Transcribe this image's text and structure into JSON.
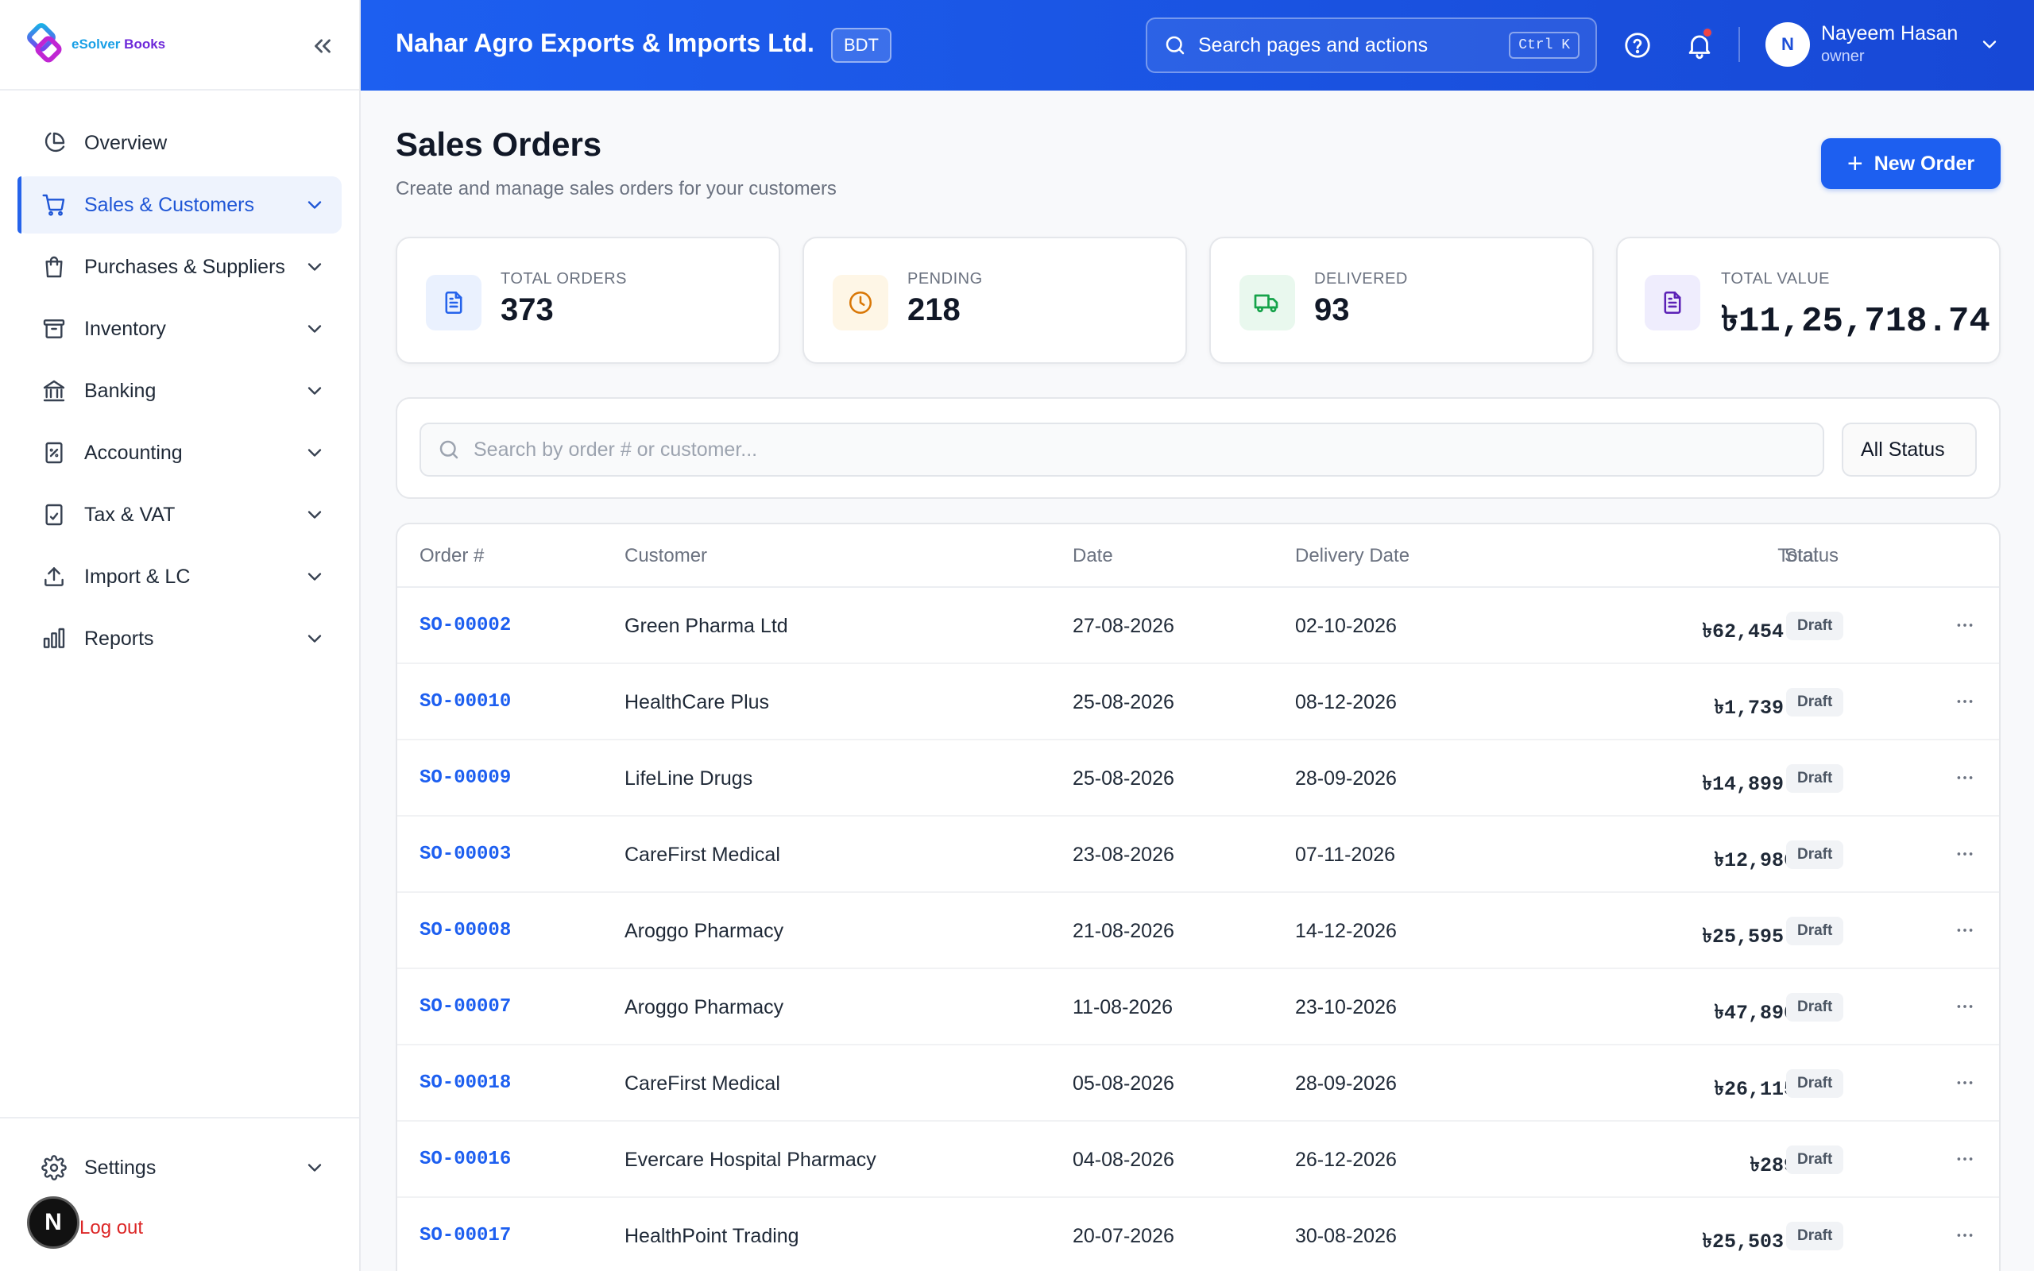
{
  "brand": {
    "name_part1": "eSolver",
    "name_part2": "Books"
  },
  "sidebar": {
    "items": [
      {
        "label": "Overview",
        "icon": "pie-chart-icon",
        "active": false,
        "has_chevron": false
      },
      {
        "label": "Sales & Customers",
        "icon": "cart-icon",
        "active": true,
        "has_chevron": true
      },
      {
        "label": "Purchases & Suppliers",
        "icon": "shopping-bag-icon",
        "active": false,
        "has_chevron": true
      },
      {
        "label": "Inventory",
        "icon": "archive-box-icon",
        "active": false,
        "has_chevron": true
      },
      {
        "label": "Banking",
        "icon": "bank-icon",
        "active": false,
        "has_chevron": true
      },
      {
        "label": "Accounting",
        "icon": "calculator-icon",
        "active": false,
        "has_chevron": true
      },
      {
        "label": "Tax & VAT",
        "icon": "receipt-icon",
        "active": false,
        "has_chevron": true
      },
      {
        "label": "Import & LC",
        "icon": "upload-icon",
        "active": false,
        "has_chevron": true
      },
      {
        "label": "Reports",
        "icon": "bar-chart-icon",
        "active": false,
        "has_chevron": true
      }
    ],
    "settings_label": "Settings",
    "logout_label": "Log out",
    "dev_avatar_letter": "N"
  },
  "header": {
    "company": "Nahar Agro Exports & Imports Ltd.",
    "currency": "BDT",
    "search_placeholder": "Search pages and actions",
    "shortcut": "Ctrl K",
    "user": {
      "initial": "N",
      "name": "Nayeem Hasan",
      "role": "owner"
    }
  },
  "page": {
    "title": "Sales Orders",
    "subtitle": "Create and manage sales orders for your customers",
    "new_button": "New Order"
  },
  "stats": [
    {
      "label": "TOTAL ORDERS",
      "value": "373",
      "icon": "document-icon",
      "color": "#2563eb",
      "bg": "#eaf1fe"
    },
    {
      "label": "PENDING",
      "value": "218",
      "icon": "clock-icon",
      "color": "#d97706",
      "bg": "#fef6e6"
    },
    {
      "label": "DELIVERED",
      "value": "93",
      "icon": "truck-icon",
      "color": "#16a34a",
      "bg": "#e9f8ee"
    },
    {
      "label": "TOTAL VALUE",
      "value": "৳11,25,718.74",
      "icon": "invoice-icon",
      "color": "#5b21b6",
      "bg": "#efedfd"
    }
  ],
  "filters": {
    "search_placeholder": "Search by order # or customer...",
    "status_value": "All Status"
  },
  "table": {
    "headers": {
      "order": "Order #",
      "customer": "Customer",
      "date": "Date",
      "delivery": "Delivery Date",
      "total": "Total",
      "status": "Status"
    },
    "rows": [
      {
        "order": "SO-00002",
        "customer": "Green Pharma Ltd",
        "date": "27-08-2026",
        "delivery": "02-10-2026",
        "total": "৳62,454.63",
        "status": "Draft"
      },
      {
        "order": "SO-00010",
        "customer": "HealthCare Plus",
        "date": "25-08-2026",
        "delivery": "08-12-2026",
        "total": "৳1,739.53",
        "status": "Draft"
      },
      {
        "order": "SO-00009",
        "customer": "LifeLine Drugs",
        "date": "25-08-2026",
        "delivery": "28-09-2026",
        "total": "৳14,899.45",
        "status": "Draft"
      },
      {
        "order": "SO-00003",
        "customer": "CareFirst Medical",
        "date": "23-08-2026",
        "delivery": "07-11-2026",
        "total": "৳12,986.1",
        "status": "Draft"
      },
      {
        "order": "SO-00008",
        "customer": "Aroggo Pharmacy",
        "date": "21-08-2026",
        "delivery": "14-12-2026",
        "total": "৳25,595.85",
        "status": "Draft"
      },
      {
        "order": "SO-00007",
        "customer": "Aroggo Pharmacy",
        "date": "11-08-2026",
        "delivery": "23-10-2026",
        "total": "৳47,890.7",
        "status": "Draft"
      },
      {
        "order": "SO-00018",
        "customer": "CareFirst Medical",
        "date": "05-08-2026",
        "delivery": "28-09-2026",
        "total": "৳26,115.7",
        "status": "Draft"
      },
      {
        "order": "SO-00016",
        "customer": "Evercare Hospital Pharmacy",
        "date": "04-08-2026",
        "delivery": "26-12-2026",
        "total": "৳289.8",
        "status": "Draft"
      },
      {
        "order": "SO-00017",
        "customer": "HealthPoint Trading",
        "date": "20-07-2026",
        "delivery": "30-08-2026",
        "total": "৳25,503.85",
        "status": "Draft"
      }
    ]
  },
  "colors": {
    "primary": "#1d5ff0",
    "accent_text": "#1f56d6",
    "danger": "#dc2626"
  }
}
